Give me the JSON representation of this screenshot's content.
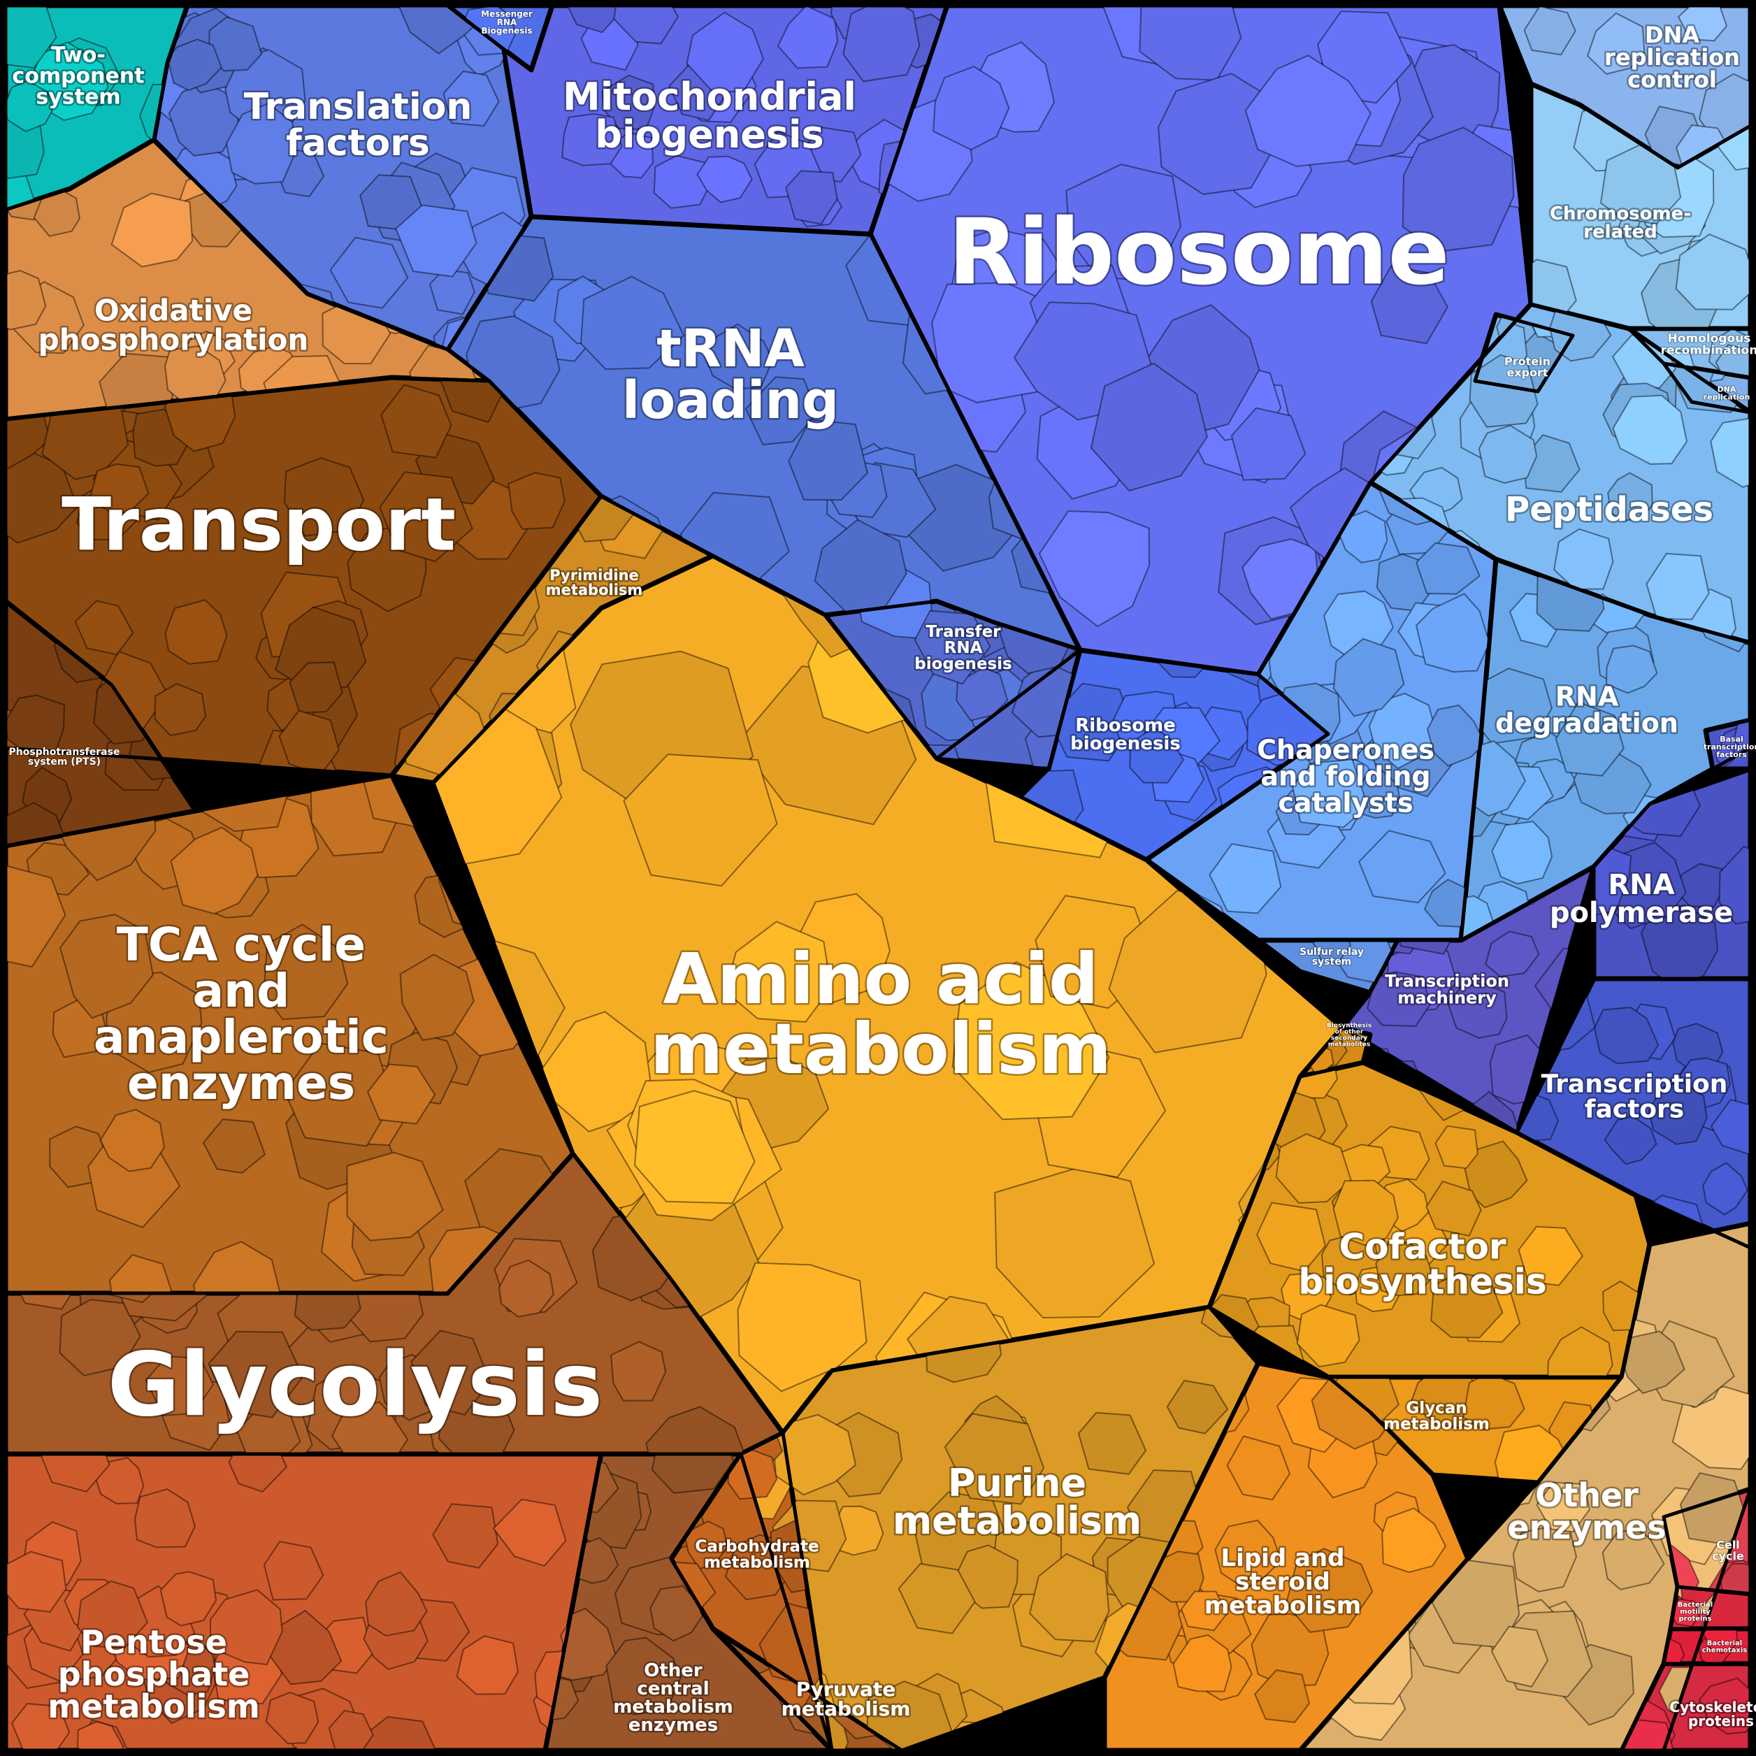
{
  "regions": [
    {
      "key": "two_component",
      "label": [
        "Two-",
        "component",
        "system"
      ],
      "color": "#0bbdb8"
    },
    {
      "key": "translation_factors",
      "label": [
        "Translation",
        "factors"
      ],
      "color": "#5b79de"
    },
    {
      "key": "messenger_rna",
      "label": [
        "Messenger",
        "RNA",
        "Biogenesis"
      ],
      "color": "#4f6fe8"
    },
    {
      "key": "mito_biogenesis",
      "label": [
        "Mitochondrial",
        "biogenesis"
      ],
      "color": "#5f67e6"
    },
    {
      "key": "ribosome",
      "label": [
        "Ribosome"
      ],
      "color": "#6470f2"
    },
    {
      "key": "dna_replication_control",
      "label": [
        "DNA",
        "replication",
        "control"
      ],
      "color": "#8ab4ee"
    },
    {
      "key": "chromosome",
      "label": [
        "Chromosome-",
        "related"
      ],
      "color": "#94cdf6"
    },
    {
      "key": "homologous",
      "label": [
        "Homologous",
        "recombination"
      ],
      "color": "#86bdee"
    },
    {
      "key": "dna_replication",
      "label": [
        "DNA",
        "replication"
      ],
      "color": "#7fb0ea"
    },
    {
      "key": "protein_export",
      "label": [
        "Protein",
        "export"
      ],
      "color": "#7ab6ee"
    },
    {
      "key": "oxphos",
      "label": [
        "Oxidative",
        "phosphorylation"
      ],
      "color": "#dc8e48"
    },
    {
      "key": "trna_loading",
      "label": [
        "tRNA",
        "loading"
      ],
      "color": "#5577dc"
    },
    {
      "key": "peptidases",
      "label": [
        "Peptidases"
      ],
      "color": "#7fbaf2"
    },
    {
      "key": "transport",
      "label": [
        "Transport"
      ],
      "color": "#8c4a10"
    },
    {
      "key": "pts",
      "label": [
        "Phosphotransferase",
        "system (PTS)"
      ],
      "color": "#7a3e12"
    },
    {
      "key": "pyrimidine",
      "label": [
        "Pyrimidine",
        "metabolism"
      ],
      "color": "#d28c22"
    },
    {
      "key": "transfer_rna",
      "label": [
        "Transfer",
        "RNA",
        "biogenesis"
      ],
      "color": "#5368cc"
    },
    {
      "key": "ribosome_biogenesis",
      "label": [
        "Ribosome",
        "biogenesis"
      ],
      "color": "#4c6ef0"
    },
    {
      "key": "chaperones",
      "label": [
        "Chaperones",
        "and folding",
        "catalysts"
      ],
      "color": "#6aa2f6"
    },
    {
      "key": "rna_degradation",
      "label": [
        "RNA",
        "degradation"
      ],
      "color": "#6ba8ea"
    },
    {
      "key": "basal_tf",
      "label": [
        "Basal",
        "transcription",
        "factors"
      ],
      "color": "#4b56c8"
    },
    {
      "key": "rna_polymerase",
      "label": [
        "RNA",
        "polymerase"
      ],
      "color": "#4a52c4"
    },
    {
      "key": "sulfur_relay",
      "label": [
        "Sulfur relay",
        "system"
      ],
      "color": "#5f8fe0"
    },
    {
      "key": "transcription_machinery",
      "label": [
        "Transcription",
        "machinery"
      ],
      "color": "#5c55c4"
    },
    {
      "key": "transcription_factors",
      "label": [
        "Transcription",
        "factors"
      ],
      "color": "#4558cc"
    },
    {
      "key": "tca",
      "label": [
        "TCA cycle",
        "and",
        "anaplerotic",
        "enzymes"
      ],
      "color": "#b86a20"
    },
    {
      "key": "amino_acid",
      "label": [
        "Amino acid",
        "metabolism"
      ],
      "color": "#f6ad26"
    },
    {
      "key": "secondary",
      "label": [
        "Biosynthesis",
        "of other",
        "secondary",
        "metabolites"
      ],
      "color": "#d88a16"
    },
    {
      "key": "cofactor",
      "label": [
        "Cofactor",
        "biosynthesis"
      ],
      "color": "#e29a1c"
    },
    {
      "key": "glycolysis",
      "label": [
        "Glycolysis"
      ],
      "color": "#a45a26"
    },
    {
      "key": "glycan",
      "label": [
        "Glycan",
        "metabolism"
      ],
      "color": "#ee9a1a"
    },
    {
      "key": "purine",
      "label": [
        "Purine",
        "metabolism"
      ],
      "color": "#dc9a26"
    },
    {
      "key": "lipid",
      "label": [
        "Lipid and",
        "steroid",
        "metabolism"
      ],
      "color": "#f0901e"
    },
    {
      "key": "other_enzymes",
      "label": [
        "Other",
        "enzymes"
      ],
      "color": "#dcb06c"
    },
    {
      "key": "cell_cycle",
      "label": [
        "Cell",
        "cycle"
      ],
      "color": "#e04050"
    },
    {
      "key": "bacterial_motility",
      "label": [
        "Bacterial",
        "motility",
        "proteins"
      ],
      "color": "#d8283e"
    },
    {
      "key": "bacterial_chemotaxis",
      "label": [
        "Bacterial",
        "chemotaxis"
      ],
      "color": "#e0203a"
    },
    {
      "key": "cytoskeleton",
      "label": [
        "Cytoskeleton",
        "proteins"
      ],
      "color": "#d42a42"
    },
    {
      "key": "carbohydrate",
      "label": [
        "Carbohydrate",
        "metabolism"
      ],
      "color": "#c0621e"
    },
    {
      "key": "pentose",
      "label": [
        "Pentose",
        "phosphate",
        "metabolism"
      ],
      "color": "#cc5a2c"
    },
    {
      "key": "other_central",
      "label": [
        "Other",
        "central",
        "metabolism",
        "enzymes"
      ],
      "color": "#9a562a"
    },
    {
      "key": "pyruvate",
      "label": [
        "Pyruvate",
        "metabolism"
      ],
      "color": "#a45a22"
    }
  ]
}
